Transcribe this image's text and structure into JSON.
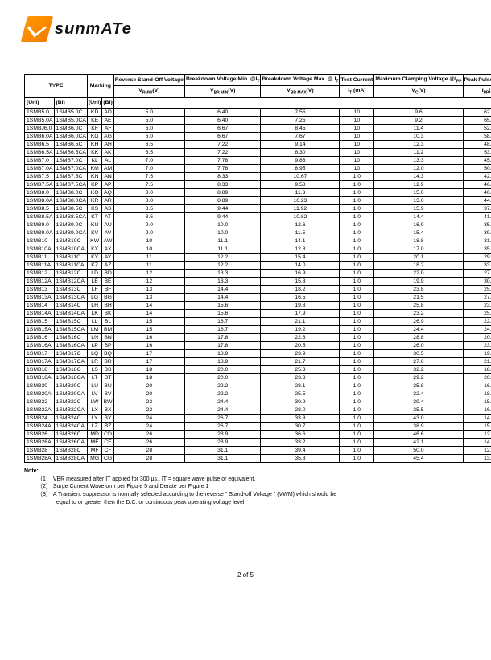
{
  "logo": {
    "text": "sunmATe"
  },
  "headers": {
    "type": "TYPE",
    "marking": "Marking",
    "rsov": "Reverse Stand-Off Voltage",
    "bvmin": "Breakdown Voltage Min. @I",
    "bvmax": "Breakdown Voltage Max. @ I",
    "test": "Test Current",
    "clamp": "Maximum Clamping Voltage @I",
    "peak": "Peak Pulse Current",
    "leak": "Reverse Leakage @V",
    "uni": "(Uni)",
    "bi": "(Bi)",
    "vrmw": "V",
    "vrmw_unit": "(V)",
    "vbrmin": "V",
    "vbrmin_sub": "BR MIN",
    "vbrmin_unit": "(V)",
    "vbrmax": "V",
    "vbrmax_sub": "BR MAX",
    "vbrmax_unit": "(V)",
    "it": "I",
    "it_unit": " (mA)",
    "vc": "V",
    "vc_unit": "(V)",
    "ipp": "I",
    "ipp_unit": "(A)",
    "ir": "I",
    "ir_unit": "(uA)",
    "sub_t": "T",
    "sub_pp": "PP",
    "sub_rmw": "RMW",
    "sub_c": "C",
    "sub_r": "R"
  },
  "rows": [
    [
      "1SMB5.0",
      "1SMB5.0C",
      "KD",
      "AD",
      "5.0",
      "6.40",
      "7.55",
      "10",
      "9.6",
      "62.5",
      "800.0"
    ],
    [
      "1SMB5.0A",
      "1SMB5.0CA",
      "KE",
      "AE",
      "5.0",
      "6.40",
      "7.25",
      "10",
      "9.2",
      "65.2",
      "800.0"
    ],
    [
      "1SMBJ6.0",
      "1SMB6.0C",
      "KF",
      "AF",
      "6.0",
      "6.67",
      "8.45",
      "10",
      "11.4",
      "52.6",
      "800.0"
    ],
    [
      "1SMB6.0A",
      "1SMB6.0CA",
      "KG",
      "AG",
      "6.0",
      "6.67",
      "7.67",
      "10",
      "10.3",
      "58.3",
      "800.0"
    ],
    [
      "1SMB6.5",
      "1SMB6.5C",
      "KH",
      "AH",
      "6.5",
      "7.22",
      "9.14",
      "10",
      "12.3",
      "48.8",
      "500.0"
    ],
    [
      "1SMB6.5A",
      "1SMB6.5CA",
      "KK",
      "AK",
      "6.5",
      "7.22",
      "8.30",
      "10",
      "11.2",
      "53.6",
      "500.0"
    ],
    [
      "1SMB7.0",
      "1SMB7.0C",
      "KL",
      "AL",
      "7.0",
      "7.78",
      "9.86",
      "10",
      "13.3",
      "45.1",
      "200.0"
    ],
    [
      "1SMB7.0A",
      "1SMB7.0CA",
      "KM",
      "AM",
      "7.0",
      "7.78",
      "8.95",
      "10",
      "12.0",
      "50.0",
      "200.0"
    ],
    [
      "1SMB7.5",
      "1SMB7.5C",
      "KN",
      "AN",
      "7.5",
      "8.33",
      "10.67",
      "1.0",
      "14.3",
      "42.0",
      "100.0"
    ],
    [
      "1SMB7.5A",
      "1SMB7.5CA",
      "KP",
      "AP",
      "7.5",
      "8.33",
      "9.58",
      "1.0",
      "12.9",
      "46.5",
      "100.0"
    ],
    [
      "1SMB8.0",
      "1SMB8.0C",
      "KQ",
      "AQ",
      "8.0",
      "8.89",
      "11.3",
      "1.0",
      "15.0",
      "40.0",
      "50.0"
    ],
    [
      "1SMB8.0A",
      "1SMB8.0CA",
      "KR",
      "AR",
      "8.0",
      "8.89",
      "10.23",
      "1.0",
      "13.6",
      "44.1",
      "50.0"
    ],
    [
      "1SMB8.5",
      "1SMB8.5C",
      "KS",
      "AS",
      "8.5",
      "9.44",
      "11.92",
      "1.0",
      "15.9",
      "37.7",
      "20.0"
    ],
    [
      "1SMB8.5A",
      "1SMB8.5CA",
      "KT",
      "AT",
      "8.5",
      "9.44",
      "10.82",
      "1.0",
      "14.4",
      "41.7",
      "20.0"
    ],
    [
      "1SMB9.0",
      "1SMB9.0C",
      "KU",
      "AU",
      "9.0",
      "10.0",
      "12.6",
      "1.0",
      "16.9",
      "35.5",
      "10.0"
    ],
    [
      "1SMB9.0A",
      "1SMB9.0CA",
      "KV",
      "AV",
      "9.0",
      "10.0",
      "11.5",
      "1.0",
      "15.4",
      "39.0",
      "10.0"
    ],
    [
      "1SMB10",
      "1SMB10C",
      "KW",
      "AW",
      "10",
      "11.1",
      "14.1",
      "1.0",
      "18.8",
      "31.9",
      "5.0"
    ],
    [
      "1SMB10A",
      "1SMB10CA",
      "KX",
      "AX",
      "10",
      "11.1",
      "12.8",
      "1.0",
      "17.0",
      "35.3",
      "5.0"
    ],
    [
      "1SMB11",
      "1SMB11C",
      "KY",
      "AY",
      "11",
      "12.2",
      "15.4",
      "1.0",
      "20.1",
      "29.9",
      "5.0"
    ],
    [
      "1SMB11A",
      "1SMB11CA",
      "KZ",
      "AZ",
      "11",
      "12.2",
      "14.0",
      "1.0",
      "18.2",
      "33.0",
      "5.0"
    ],
    [
      "1SMB12",
      "1SMB12C",
      "LD",
      "BD",
      "12",
      "13.3",
      "16.9",
      "1.0",
      "22.0",
      "27.3",
      "5.0"
    ],
    [
      "1SMB12A",
      "1SMB12CA",
      "LE",
      "BE",
      "12",
      "13.3",
      "15.3",
      "1.0",
      "19.9",
      "30.2",
      "5.0"
    ],
    [
      "1SMB13",
      "1SMB13C",
      "LF",
      "BF",
      "13",
      "14.4",
      "18.2",
      "1.0",
      "23.8",
      "25.2",
      "5.0"
    ],
    [
      "1SMB13A",
      "1SMB13CA",
      "LG",
      "BG",
      "13",
      "14.4",
      "16.5",
      "1.0",
      "21.5",
      "27.9",
      "5.0"
    ],
    [
      "1SMB14",
      "1SMB14C",
      "LH",
      "BH",
      "14",
      "15.6",
      "19.8",
      "1.0",
      "25.8",
      "23.3",
      "5.0"
    ],
    [
      "1SMB14A",
      "1SMB14CA",
      "LK",
      "BK",
      "14",
      "15.6",
      "17.9",
      "1.0",
      "23.2",
      "25.9",
      "5.0"
    ],
    [
      "1SMB15",
      "1SMB15C",
      "LL",
      "BL",
      "15",
      "16.7",
      "21.1",
      "1.0",
      "26.9",
      "22.3",
      "5.0"
    ],
    [
      "1SMB15A",
      "1SMB15CA",
      "LM",
      "BM",
      "15",
      "16.7",
      "19.2",
      "1.0",
      "24.4",
      "24.6",
      "5.0"
    ],
    [
      "1SMB16",
      "1SMB16C",
      "LN",
      "BN",
      "16",
      "17.8",
      "22.6",
      "1.0",
      "28.8",
      "20.8",
      "5.0"
    ],
    [
      "1SMB16A",
      "1SMB16CA",
      "LP",
      "BP",
      "16",
      "17.8",
      "20.5",
      "1.0",
      "26.0",
      "23.1",
      "5.0"
    ],
    [
      "1SMB17",
      "1SMB17C",
      "LQ",
      "BQ",
      "17",
      "18.9",
      "23.9",
      "1.0",
      "30.5",
      "19.7",
      "5.0"
    ],
    [
      "1SMB17A",
      "1SMB17CA",
      "LR",
      "BR",
      "17",
      "18.9",
      "21.7",
      "1.0",
      "27.6",
      "21.7",
      "5.0"
    ],
    [
      "1SMB18",
      "1SMB18C",
      "LS",
      "BS",
      "18",
      "20.0",
      "25.3",
      "1.0",
      "32.2",
      "18.6",
      "5.0"
    ],
    [
      "1SMB18A",
      "1SMB18CA",
      "LT",
      "BT",
      "18",
      "20.0",
      "23.3",
      "1.0",
      "29.2",
      "20.5",
      "5.0"
    ],
    [
      "1SMB20",
      "1SMB20C",
      "LU",
      "BU",
      "20",
      "22.2",
      "28.1",
      "1.0",
      "35.8",
      "16.8",
      "5.0"
    ],
    [
      "1SMB20A",
      "1SMB20CA",
      "LV",
      "BV",
      "20",
      "22.2",
      "25.5",
      "1.0",
      "32.4",
      "18.5",
      "5.0"
    ],
    [
      "1SMB22",
      "1SMB22C",
      "LW",
      "BW",
      "22",
      "24.4",
      "30.9",
      "1.0",
      "39.4",
      "15.2",
      "5.0"
    ],
    [
      "1SMB22A",
      "1SMB22CA",
      "LX",
      "BX",
      "22",
      "24.4",
      "28.0",
      "1.0",
      "35.5",
      "16.9",
      "5.0"
    ],
    [
      "1SMB24",
      "1SMB24C",
      "LY",
      "BY",
      "24",
      "26.7",
      "33.8",
      "1.0",
      "43.0",
      "14.0",
      "5.0"
    ],
    [
      "1SMB24A",
      "1SMB24CA",
      "LZ",
      "BZ",
      "24",
      "26.7",
      "30.7",
      "1.0",
      "38.9",
      "15.4",
      "5.0"
    ],
    [
      "1SMB26",
      "1SMB26C",
      "MD",
      "CD",
      "26",
      "28.9",
      "36.6",
      "1.0",
      "46.6",
      "12.9",
      "5.0"
    ],
    [
      "1SMB26A",
      "1SMB26CA",
      "ME",
      "CE",
      "26",
      "28.9",
      "33.2",
      "1.0",
      "42.1",
      "14.3",
      "5.0"
    ],
    [
      "1SMB28",
      "1SMB28C",
      "MF",
      "CF",
      "28",
      "31.1",
      "39.4",
      "1.0",
      "50.0",
      "12.0",
      "5.0"
    ],
    [
      "1SMB28A",
      "1SMB28CA",
      "MG",
      "CG",
      "28",
      "31.1",
      "35.8",
      "1.0",
      "45.4",
      "13.2",
      "5.0"
    ]
  ],
  "note": {
    "title": "Note:",
    "n1": "（1） VBR measured after IT applied for 300 μs., IT = square wave pulse or equivalent.",
    "n2": "（2） Surge Current Waveform per Figure 5 and Derate per Figure 1",
    "n3": "（3） A Transient suppressor is normally selected according to the reverse \" Stand-off Voltage \" (VWM) which should be",
    "n3b": "equal to or greater then the D.C. or continuous peak operating voltage level."
  },
  "footer": "2 of 5"
}
